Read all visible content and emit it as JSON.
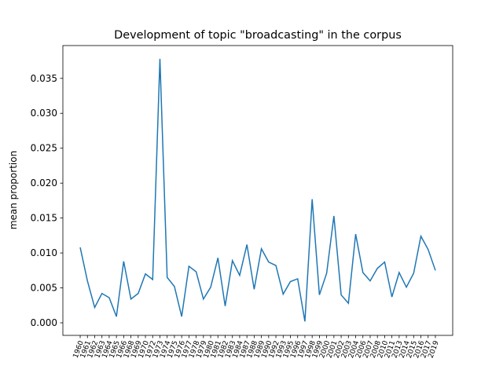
{
  "chart_data": {
    "type": "line",
    "title": "Development of topic \"broadcasting\" in the corpus",
    "y_label": "mean proportion",
    "categories": [
      "1960",
      "1961",
      "1962",
      "1963",
      "1964",
      "1965",
      "1966",
      "1968",
      "1969",
      "1970",
      "1972",
      "1973",
      "1974",
      "1975",
      "1976",
      "1977",
      "1978",
      "1979",
      "1980",
      "1981",
      "1982",
      "1983",
      "1984",
      "1987",
      "1988",
      "1989",
      "1990",
      "1992",
      "1993",
      "1995",
      "1996",
      "1997",
      "1998",
      "1999",
      "2000",
      "2001",
      "2002",
      "2003",
      "2004",
      "2006",
      "2007",
      "2008",
      "2010",
      "2011",
      "2013",
      "2014",
      "2015",
      "2016",
      "2017",
      "2019"
    ],
    "series": [
      {
        "name": "broadcasting",
        "color": "#1f77b4",
        "values": [
          0.0108,
          0.006,
          0.0022,
          0.0042,
          0.0036,
          0.0009,
          0.0088,
          0.0034,
          0.0042,
          0.007,
          0.0062,
          0.0378,
          0.0065,
          0.0052,
          0.0009,
          0.0081,
          0.0073,
          0.0034,
          0.0051,
          0.0093,
          0.0024,
          0.0089,
          0.0068,
          0.0112,
          0.0048,
          0.0106,
          0.0087,
          0.0082,
          0.0041,
          0.0059,
          0.0063,
          0.0002,
          0.0177,
          0.004,
          0.0071,
          0.0153,
          0.004,
          0.0028,
          0.0127,
          0.0072,
          0.006,
          0.0078,
          0.0087,
          0.0037,
          0.0072,
          0.0051,
          0.0071,
          0.0124,
          0.0105,
          0.0075
        ]
      }
    ],
    "ylim": [
      -0.0018,
      0.0397
    ],
    "yticks": [
      {
        "value": 0,
        "label": "0.000"
      },
      {
        "value": 0.005,
        "label": "0.005"
      },
      {
        "value": 0.01,
        "label": "0.010"
      },
      {
        "value": 0.015,
        "label": "0.015"
      },
      {
        "value": 0.02,
        "label": "0.020"
      },
      {
        "value": 0.025,
        "label": "0.025"
      },
      {
        "value": 0.03,
        "label": "0.030"
      },
      {
        "value": 0.035,
        "label": "0.035"
      }
    ]
  }
}
